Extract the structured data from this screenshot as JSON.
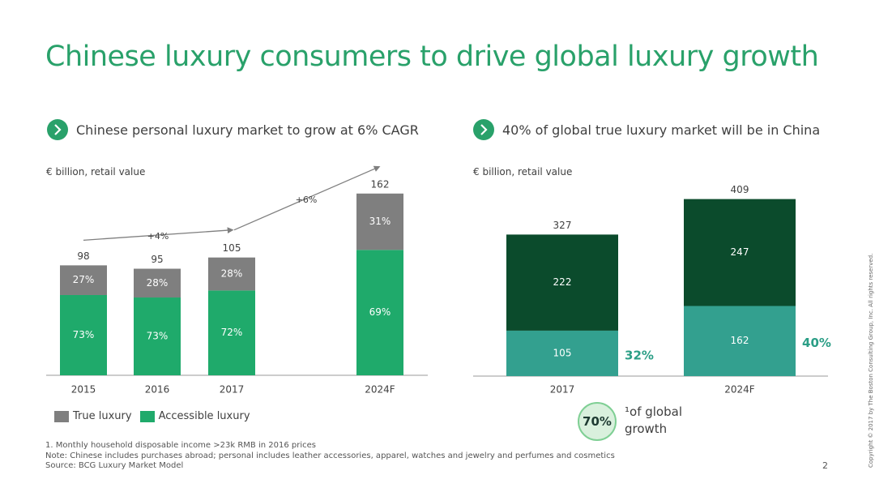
{
  "title": "Chinese luxury consumers to drive global luxury growth",
  "icons": {
    "subhead": "chevron-right-icon"
  },
  "colors": {
    "title": "#29a16a",
    "true_luxury": "#7f7f7f",
    "accessible_luxury": "#1faa6b",
    "global_dark": "#0b4b2c",
    "china_teal": "#33a08f",
    "share_text": "#2b9e86"
  },
  "left": {
    "subtitle": "Chinese personal luxury market to grow at 6% CAGR",
    "unit": "€ billion, retail value",
    "legend": {
      "true_luxury": "True luxury",
      "accessible_luxury": "Accessible luxury"
    },
    "cagr_labels": [
      "+4%",
      "+6%"
    ]
  },
  "right": {
    "subtitle": "40% of global true luxury market will be in China",
    "unit": "€ billion, retail value",
    "badge_value": "70%",
    "badge_label": "¹of global growth"
  },
  "chart_data": [
    {
      "type": "bar",
      "stacked": true,
      "categories": [
        "2015",
        "2016",
        "2017",
        "2024F"
      ],
      "totals": [
        98,
        95,
        105,
        162
      ],
      "series": [
        {
          "name": "Accessible luxury",
          "percent_labels": [
            "73%",
            "73%",
            "72%",
            "69%"
          ],
          "share": [
            0.73,
            0.73,
            0.72,
            0.69
          ]
        },
        {
          "name": "True luxury",
          "percent_labels": [
            "27%",
            "28%",
            "28%",
            "31%"
          ],
          "share": [
            0.27,
            0.28,
            0.28,
            0.31
          ]
        }
      ],
      "ylim": [
        0,
        162
      ]
    },
    {
      "type": "bar",
      "stacked": true,
      "categories": [
        "2017",
        "2024F"
      ],
      "totals": [
        327,
        409
      ],
      "series": [
        {
          "values": [
            105,
            162
          ]
        },
        {
          "values": [
            222,
            247
          ]
        }
      ],
      "share_labels": [
        "32%",
        "40%"
      ],
      "ylim": [
        0,
        409
      ]
    }
  ],
  "footer": {
    "note1": "1. Monthly household disposable income >23k RMB in 2016 prices",
    "note2": "Note: Chinese includes purchases abroad; personal includes leather accessories, apparel, watches and jewelry and perfumes and cosmetics",
    "source": "Source: BCG Luxury Market Model"
  },
  "page_number": "2",
  "copyright": "Copyright © 2017 by The Boston Consulting Group, Inc. All rights reserved."
}
